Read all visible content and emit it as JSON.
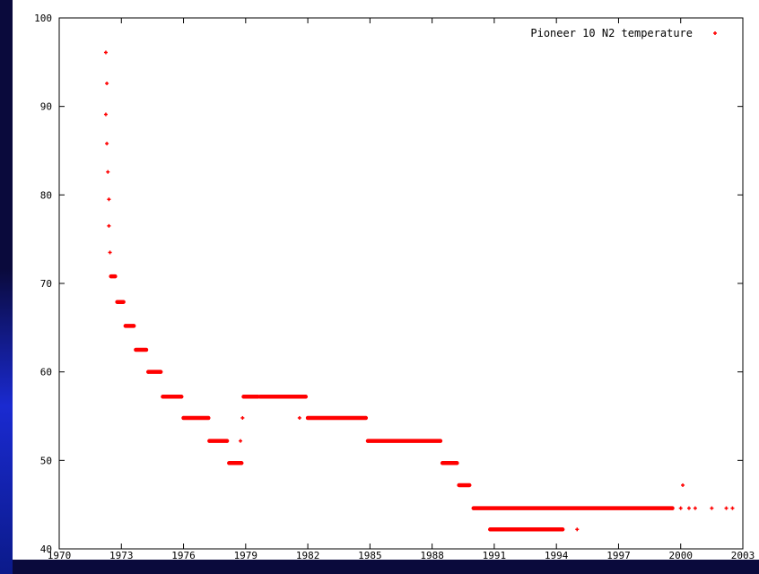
{
  "chart_data": {
    "type": "scatter",
    "title": "",
    "xlabel": "",
    "ylabel": "",
    "xlim": [
      1970,
      2003
    ],
    "ylim": [
      40,
      100
    ],
    "grid": false,
    "legend_position": "top-right",
    "x_ticks": [
      "1970",
      "1973",
      "1976",
      "1979",
      "1982",
      "1985",
      "1988",
      "1991",
      "1994",
      "1997",
      "2000",
      "2003"
    ],
    "y_ticks": [
      "40",
      "50",
      "60",
      "70",
      "80",
      "90",
      "100"
    ],
    "series": [
      {
        "name": "Pioneer 10 N2 temperature",
        "color": "#ff0000",
        "marker": "plus",
        "points": [
          [
            1972.25,
            96.1
          ],
          [
            1972.3,
            92.6
          ],
          [
            1972.25,
            89.1
          ],
          [
            1972.3,
            85.8
          ],
          [
            1972.35,
            82.6
          ],
          [
            1972.4,
            79.5
          ],
          [
            1972.4,
            76.5
          ],
          [
            1972.45,
            73.5
          ],
          [
            1972.5,
            70.8
          ],
          [
            1972.7,
            70.8
          ],
          [
            1972.8,
            67.9
          ],
          [
            1973.1,
            67.9
          ],
          [
            1973.2,
            65.2
          ],
          [
            1973.6,
            65.2
          ],
          [
            1973.7,
            62.5
          ],
          [
            1974.2,
            62.5
          ],
          [
            1974.3,
            60.0
          ],
          [
            1974.9,
            60.0
          ],
          [
            1975.0,
            57.2
          ],
          [
            1975.9,
            57.2
          ],
          [
            1976.0,
            54.8
          ],
          [
            1977.2,
            54.8
          ],
          [
            1977.25,
            52.2
          ],
          [
            1978.1,
            52.2
          ],
          [
            1978.2,
            49.7
          ],
          [
            1978.8,
            49.7
          ],
          [
            1978.75,
            52.2
          ],
          [
            1978.85,
            54.8
          ],
          [
            1978.9,
            57.2
          ],
          [
            1979.6,
            57.2
          ],
          [
            1979.7,
            57.2
          ],
          [
            1981.9,
            57.2
          ],
          [
            1981.6,
            54.8
          ],
          [
            1982.0,
            54.8
          ],
          [
            1984.8,
            54.8
          ],
          [
            1984.9,
            52.2
          ],
          [
            1988.4,
            52.2
          ],
          [
            1988.5,
            49.7
          ],
          [
            1989.2,
            49.7
          ],
          [
            1989.3,
            47.2
          ],
          [
            1989.8,
            47.2
          ],
          [
            1990.0,
            44.6
          ],
          [
            1999.6,
            44.6
          ],
          [
            1990.8,
            42.2
          ],
          [
            1994.3,
            42.2
          ],
          [
            1995.0,
            42.2
          ],
          [
            2000.1,
            47.2
          ],
          [
            2000.0,
            44.6
          ],
          [
            2000.4,
            44.6
          ],
          [
            2000.7,
            44.6
          ],
          [
            2001.5,
            44.6
          ],
          [
            2002.2,
            44.6
          ],
          [
            2002.5,
            44.6
          ]
        ],
        "segments": [
          [
            1972.5,
            1972.7,
            70.8
          ],
          [
            1972.8,
            1973.1,
            67.9
          ],
          [
            1973.2,
            1973.6,
            65.2
          ],
          [
            1973.7,
            1974.2,
            62.5
          ],
          [
            1974.3,
            1974.9,
            60.0
          ],
          [
            1975.0,
            1975.9,
            57.2
          ],
          [
            1976.0,
            1977.2,
            54.8
          ],
          [
            1977.25,
            1978.1,
            52.2
          ],
          [
            1978.2,
            1978.8,
            49.7
          ],
          [
            1978.9,
            1979.6,
            57.2
          ],
          [
            1979.7,
            1981.9,
            57.2
          ],
          [
            1982.0,
            1984.8,
            54.8
          ],
          [
            1984.9,
            1988.4,
            52.2
          ],
          [
            1988.5,
            1989.2,
            49.7
          ],
          [
            1989.3,
            1989.8,
            47.2
          ],
          [
            1990.0,
            1999.6,
            44.6
          ],
          [
            1990.8,
            1994.3,
            42.2
          ]
        ]
      }
    ]
  }
}
